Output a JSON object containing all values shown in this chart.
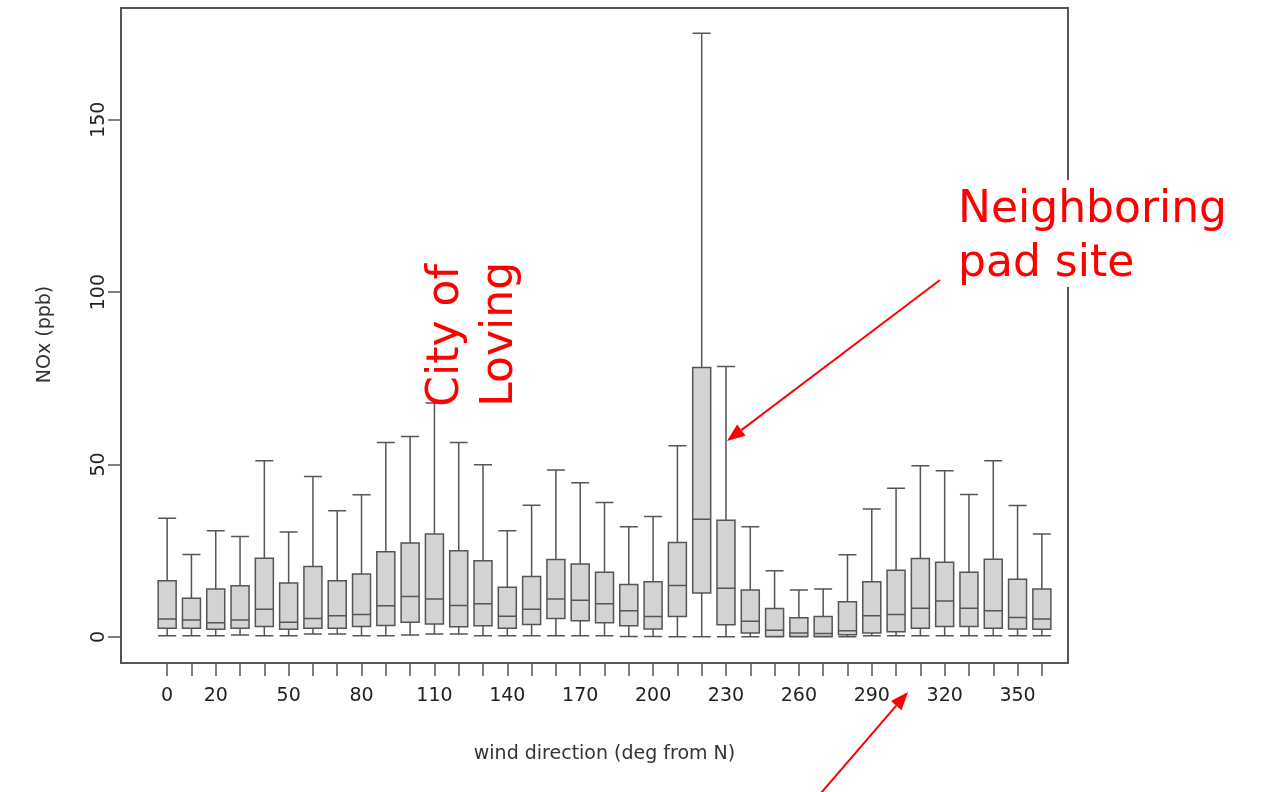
{
  "chart_data": {
    "type": "box",
    "xlabel": "wind direction (deg from N)",
    "ylabel": "NOx (ppb)",
    "categories": [
      "0",
      null,
      "20",
      null,
      null,
      "50",
      null,
      null,
      "80",
      null,
      null,
      "110",
      null,
      null,
      "140",
      null,
      null,
      "170",
      null,
      null,
      "200",
      null,
      null,
      "230",
      null,
      null,
      "260",
      null,
      null,
      "290",
      null,
      null,
      "320",
      null,
      null,
      "350",
      null
    ],
    "ylim": [
      -7.3,
      182.7
    ],
    "yticks": [
      0,
      50,
      100,
      150
    ],
    "grid": false,
    "color": "#d3d3d3",
    "boxes": [
      {
        "low": 0.3,
        "q1": 2.5,
        "median": 5.2,
        "q3": 16.3,
        "high": 34.4
      },
      {
        "low": 0.3,
        "q1": 2.5,
        "median": 4.9,
        "q3": 11.2,
        "high": 23.9
      },
      {
        "low": 0.3,
        "q1": 2.2,
        "median": 4.1,
        "q3": 13.9,
        "high": 30.8
      },
      {
        "low": 0.5,
        "q1": 2.5,
        "median": 4.9,
        "q3": 14.8,
        "high": 29.1
      },
      {
        "low": 0.3,
        "q1": 3.0,
        "median": 8.0,
        "q3": 22.8,
        "high": 51.1
      },
      {
        "low": 0.3,
        "q1": 2.2,
        "median": 4.2,
        "q3": 15.6,
        "high": 30.4
      },
      {
        "low": 0.8,
        "q1": 2.5,
        "median": 5.3,
        "q3": 20.4,
        "high": 46.5
      },
      {
        "low": 0.8,
        "q1": 2.5,
        "median": 6.1,
        "q3": 16.3,
        "high": 36.6
      },
      {
        "low": 0.3,
        "q1": 3.0,
        "median": 6.5,
        "q3": 18.2,
        "high": 41.2
      },
      {
        "low": 0.3,
        "q1": 3.3,
        "median": 9.0,
        "q3": 24.7,
        "high": 56.4
      },
      {
        "low": 0.5,
        "q1": 4.2,
        "median": 11.7,
        "q3": 27.2,
        "high": 58.1
      },
      {
        "low": 0.8,
        "q1": 3.7,
        "median": 11.0,
        "q3": 29.8,
        "high": 67.8
      },
      {
        "low": 0.8,
        "q1": 2.9,
        "median": 9.1,
        "q3": 25.0,
        "high": 56.4
      },
      {
        "low": 0.3,
        "q1": 3.2,
        "median": 9.6,
        "q3": 22.1,
        "high": 49.9
      },
      {
        "low": 0.3,
        "q1": 2.5,
        "median": 6.0,
        "q3": 14.4,
        "high": 30.8
      },
      {
        "low": 0.3,
        "q1": 3.6,
        "median": 8.0,
        "q3": 17.5,
        "high": 38.2
      },
      {
        "low": 0.3,
        "q1": 5.3,
        "median": 11.0,
        "q3": 22.4,
        "high": 48.4
      },
      {
        "low": 0.3,
        "q1": 4.7,
        "median": 10.6,
        "q3": 21.1,
        "high": 44.7
      },
      {
        "low": 0.3,
        "q1": 4.1,
        "median": 9.6,
        "q3": 18.7,
        "high": 39.0
      },
      {
        "low": 0.1,
        "q1": 3.2,
        "median": 7.6,
        "q3": 15.2,
        "high": 31.9
      },
      {
        "low": 0.1,
        "q1": 2.3,
        "median": 5.9,
        "q3": 16.0,
        "high": 34.9
      },
      {
        "low": 0,
        "q1": 5.9,
        "median": 14.9,
        "q3": 27.4,
        "high": 55.4
      },
      {
        "low": 0,
        "q1": 12.7,
        "median": 34.1,
        "q3": 78.1,
        "high": 175.1
      },
      {
        "low": 0,
        "q1": 3.5,
        "median": 14.1,
        "q3": 33.8,
        "high": 78.4
      },
      {
        "low": 0,
        "q1": 1.1,
        "median": 4.5,
        "q3": 13.6,
        "high": 31.9
      },
      {
        "low": 0,
        "q1": 0.1,
        "median": 1.9,
        "q3": 8.2,
        "high": 19.2
      },
      {
        "low": 0,
        "q1": 0.1,
        "median": 1.1,
        "q3": 5.5,
        "high": 13.6
      },
      {
        "low": 0,
        "q1": 0.1,
        "median": 1.0,
        "q3": 5.9,
        "high": 13.9
      },
      {
        "low": 0,
        "q1": 0.6,
        "median": 1.8,
        "q3": 10.2,
        "high": 23.8
      },
      {
        "low": 0.3,
        "q1": 1.1,
        "median": 6.1,
        "q3": 16.0,
        "high": 37.1
      },
      {
        "low": 0.3,
        "q1": 1.5,
        "median": 6.5,
        "q3": 19.3,
        "high": 43.1
      },
      {
        "low": 0.3,
        "q1": 2.5,
        "median": 8.3,
        "q3": 22.7,
        "high": 49.6
      },
      {
        "low": 0.3,
        "q1": 3.0,
        "median": 10.4,
        "q3": 21.6,
        "high": 48.2
      },
      {
        "low": 0.3,
        "q1": 3.0,
        "median": 8.3,
        "q3": 18.7,
        "high": 41.3
      },
      {
        "low": 0.3,
        "q1": 2.5,
        "median": 7.6,
        "q3": 22.5,
        "high": 51.1
      },
      {
        "low": 0.3,
        "q1": 2.3,
        "median": 5.6,
        "q3": 16.7,
        "high": 38.1
      },
      {
        "low": 0.3,
        "q1": 2.2,
        "median": 5.2,
        "q3": 13.9,
        "high": 29.8
      }
    ],
    "annotations": [
      "Neighboring pad site",
      "City of Loving"
    ]
  }
}
